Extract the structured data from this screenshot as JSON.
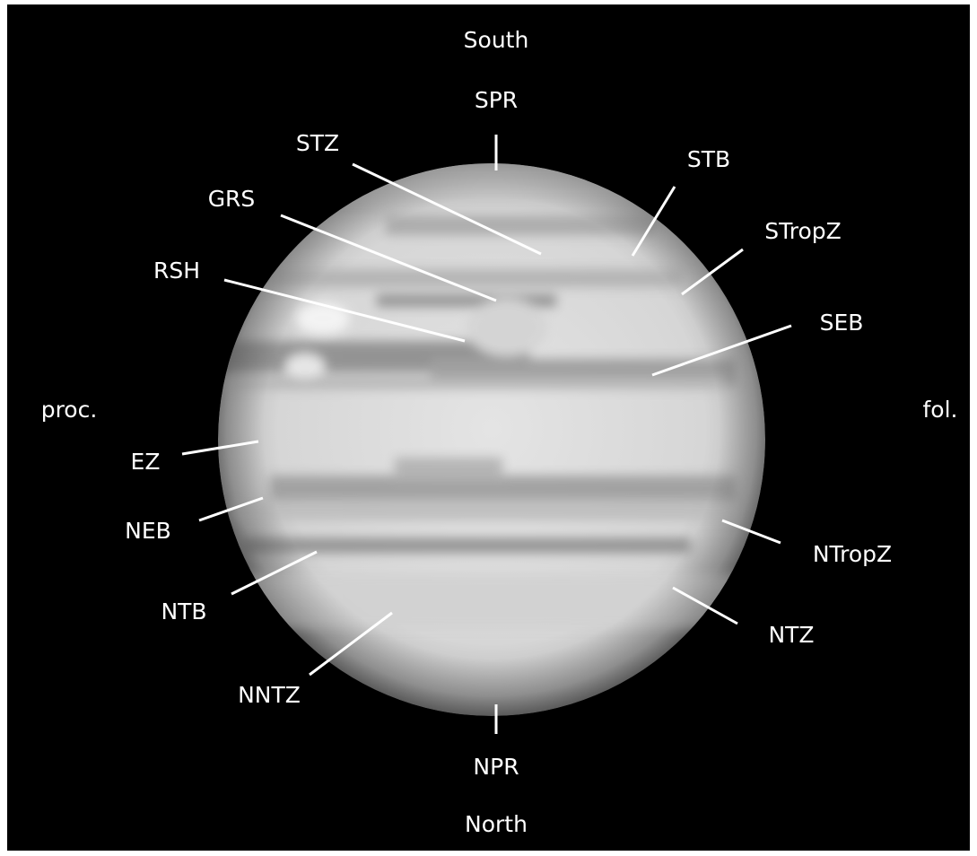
{
  "directions": {
    "south": "South",
    "north": "North",
    "preceding": "proc.",
    "following": "fol."
  },
  "labels": [
    {
      "text": "SPR"
    },
    {
      "text": "STZ"
    },
    {
      "text": "STB"
    },
    {
      "text": "GRS"
    },
    {
      "text": "STropZ"
    },
    {
      "text": "RSH"
    },
    {
      "text": "SEB"
    },
    {
      "text": "EZ"
    },
    {
      "text": "NEB"
    },
    {
      "text": "NTropZ"
    },
    {
      "text": "NTB"
    },
    {
      "text": "NTZ"
    },
    {
      "text": "NNTZ"
    },
    {
      "text": "NPR"
    }
  ]
}
